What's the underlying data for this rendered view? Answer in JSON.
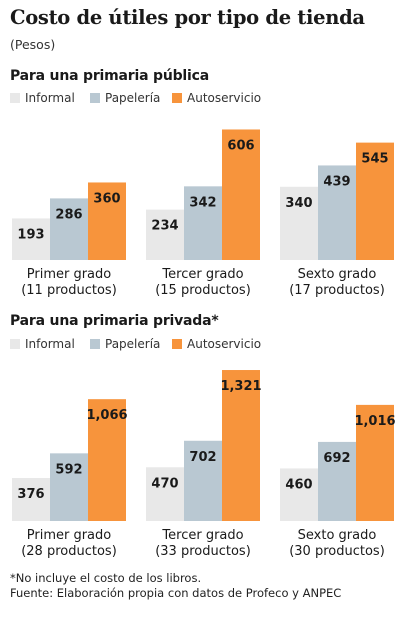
{
  "title": "Costo de útiles por tipo de tienda",
  "subtitle": "(Pesos)",
  "colors": {
    "Informal": "#e8e8e8",
    "Papelería": "#b9c8d2",
    "Autoservicio": "#f7943c"
  },
  "footnote": "*No incluye el costo de los libros.",
  "source": "Fuente: Elaboración propia con datos de Profeco y ANPEC",
  "chart_data": [
    {
      "type": "bar",
      "title": "Para una primaria pública",
      "legend": [
        "Informal",
        "Papelería",
        "Autoservicio"
      ],
      "legend_position": "top-left",
      "grid": false,
      "ylim": [
        0,
        650
      ],
      "categories": [
        {
          "line1": "Primer grado",
          "line2": "(11 productos)"
        },
        {
          "line1": "Tercer grado",
          "line2": "(15 productos)"
        },
        {
          "line1": "Sexto grado",
          "line2": "(17 productos)"
        }
      ],
      "series": [
        {
          "name": "Informal",
          "values": [
            193,
            234,
            340
          ],
          "labels": [
            "193",
            "234",
            "340"
          ]
        },
        {
          "name": "Papelería",
          "values": [
            286,
            342,
            439
          ],
          "labels": [
            "286",
            "342",
            "439"
          ]
        },
        {
          "name": "Autoservicio",
          "values": [
            360,
            606,
            545
          ],
          "labels": [
            "360",
            "606",
            "545"
          ]
        }
      ]
    },
    {
      "type": "bar",
      "title": "Para una primaria privada*",
      "legend": [
        "Informal",
        "Papelería",
        "Autoservicio"
      ],
      "legend_position": "top-left",
      "grid": false,
      "ylim": [
        0,
        1400
      ],
      "categories": [
        {
          "line1": "Primer grado",
          "line2": "(28 productos)"
        },
        {
          "line1": "Tercer grado",
          "line2": "(33 productos)"
        },
        {
          "line1": "Sexto grado",
          "line2": "(30 productos)"
        }
      ],
      "series": [
        {
          "name": "Informal",
          "values": [
            376,
            470,
            460
          ],
          "labels": [
            "376",
            "470",
            "460"
          ]
        },
        {
          "name": "Papelería",
          "values": [
            592,
            702,
            692
          ],
          "labels": [
            "592",
            "702",
            "692"
          ]
        },
        {
          "name": "Autoservicio",
          "values": [
            1066,
            1321,
            1016
          ],
          "labels": [
            "1,066",
            "1,321",
            "1,016"
          ]
        }
      ]
    }
  ]
}
